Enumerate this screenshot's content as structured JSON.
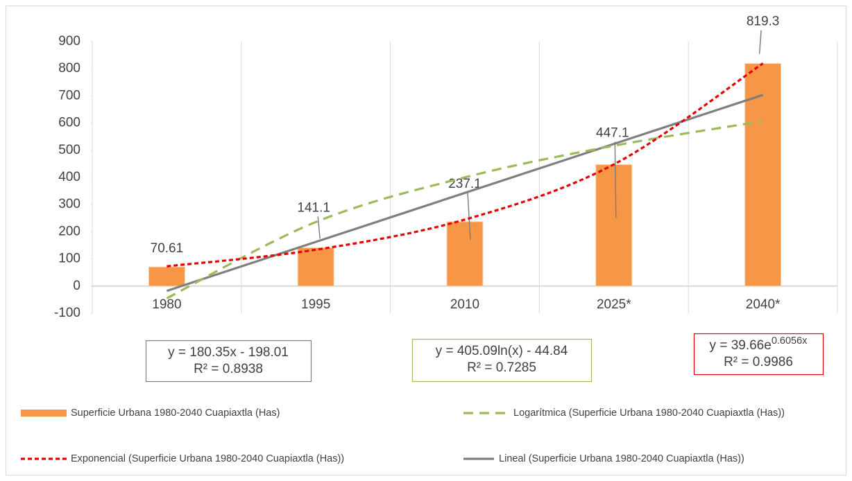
{
  "chart_data": {
    "type": "bar",
    "categories": [
      "1980",
      "1995",
      "2010",
      "2025*",
      "2040*"
    ],
    "series": [
      {
        "name": "Superficie Urbana 1980-2040 Cuapiaxtla  (Has)",
        "color": "#F79646",
        "values": [
          70.61,
          141.1,
          237.1,
          447.1,
          819.3
        ]
      }
    ],
    "trendlines": [
      {
        "name": "Logarítmica (Superficie Urbana 1980-2040 Cuapiaxtla  (Has))",
        "color": "#9BBB59",
        "dash": "long",
        "values": [
          -44.84,
          235.9,
          400.2,
          516.7,
          607.1
        ],
        "equation": "y = 405.09ln(x) - 44.84",
        "r2": "R² = 0.7285"
      },
      {
        "name": "Exponencial (Superficie Urbana 1980-2040 Cuapiaxtla  (Has))",
        "color": "#E60000",
        "dash": "short",
        "values": [
          72.9,
          133.9,
          244.9,
          448.0,
          819.7
        ],
        "equation": "y = 39.66e",
        "equation_exponent": "0.6056x",
        "r2": "R² = 0.9986"
      },
      {
        "name": "Lineal (Superficie Urbana 1980-2040 Cuapiaxtla  (Has))",
        "color": "#7F7F7F",
        "dash": "solid",
        "values": [
          -17.66,
          162.69,
          343.04,
          523.39,
          703.74
        ],
        "equation": "y = 180.35x - 198.01",
        "r2": "R² = 0.8938"
      }
    ],
    "ylim": [
      -100,
      900
    ],
    "yticks": [
      -100,
      0,
      100,
      200,
      300,
      400,
      500,
      600,
      700,
      800,
      900
    ],
    "grid": "vertical"
  }
}
